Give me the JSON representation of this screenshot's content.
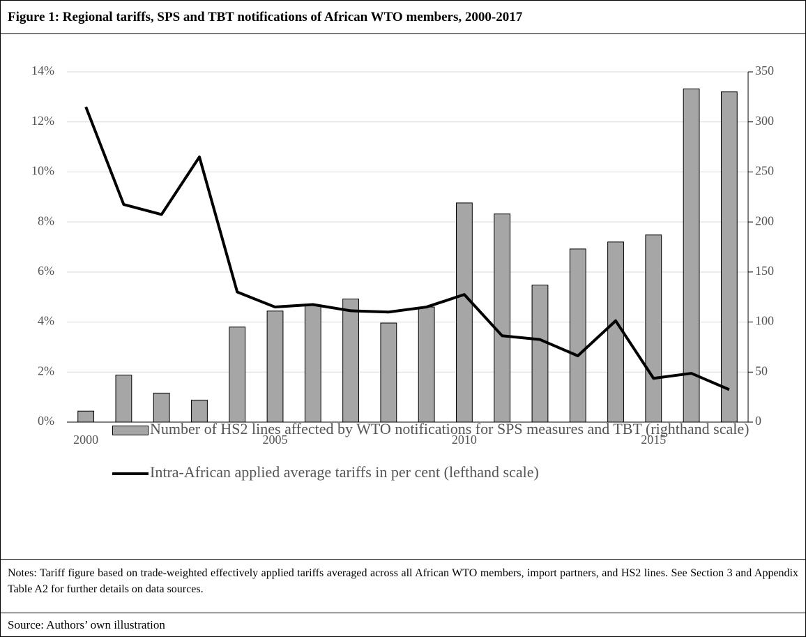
{
  "title": "Figure 1:    Regional tariffs, SPS and TBT notifications of African WTO members, 2000-2017",
  "chart_data": {
    "type": "bar_line",
    "x": [
      2000,
      2001,
      2002,
      2003,
      2004,
      2005,
      2006,
      2007,
      2008,
      2009,
      2010,
      2011,
      2012,
      2013,
      2014,
      2015,
      2016,
      2017
    ],
    "xlim": [
      1999.5,
      2017.5
    ],
    "xticks": [
      2000,
      2005,
      2010,
      2015
    ],
    "ylim": [
      0,
      14
    ],
    "yticks": [
      {
        "value": 0,
        "label": "0%"
      },
      {
        "value": 2,
        "label": "2%"
      },
      {
        "value": 4,
        "label": "4%"
      },
      {
        "value": 6,
        "label": "6%"
      },
      {
        "value": 8,
        "label": "8%"
      },
      {
        "value": 10,
        "label": "10%"
      },
      {
        "value": 12,
        "label": "12%"
      },
      {
        "value": 14,
        "label": "14%"
      }
    ],
    "y2lim": [
      0,
      350
    ],
    "y2ticks": [
      0,
      50,
      100,
      150,
      200,
      250,
      300,
      350
    ],
    "grid": true,
    "series": [
      {
        "name": "Number of HS2 lines affected by WTO notifications for SPS measures and TBT (righthand scale)",
        "type": "bar",
        "color": "#a6a6a6",
        "axis": "y2",
        "values": [
          11,
          47,
          29,
          22,
          95,
          111,
          117,
          123,
          99,
          115,
          219,
          208,
          137,
          173,
          180,
          187,
          333,
          330
        ]
      },
      {
        "name": "Intra-African applied average tariffs in per cent (lefthand scale)",
        "type": "line",
        "color": "#000000",
        "axis": "y",
        "values": [
          12.6,
          8.7,
          8.3,
          10.6,
          5.2,
          4.6,
          4.7,
          4.45,
          4.4,
          4.6,
          5.1,
          3.45,
          3.3,
          2.65,
          4.05,
          1.75,
          1.95,
          1.3
        ]
      }
    ]
  },
  "notes": "Notes: Tariff figure based on trade-weighted effectively applied tariffs averaged across all African WTO members, import partners, and HS2 lines. See Section 3 and Appendix Table A2 for further details on data sources.",
  "source": "Source: Authors’ own illustration"
}
